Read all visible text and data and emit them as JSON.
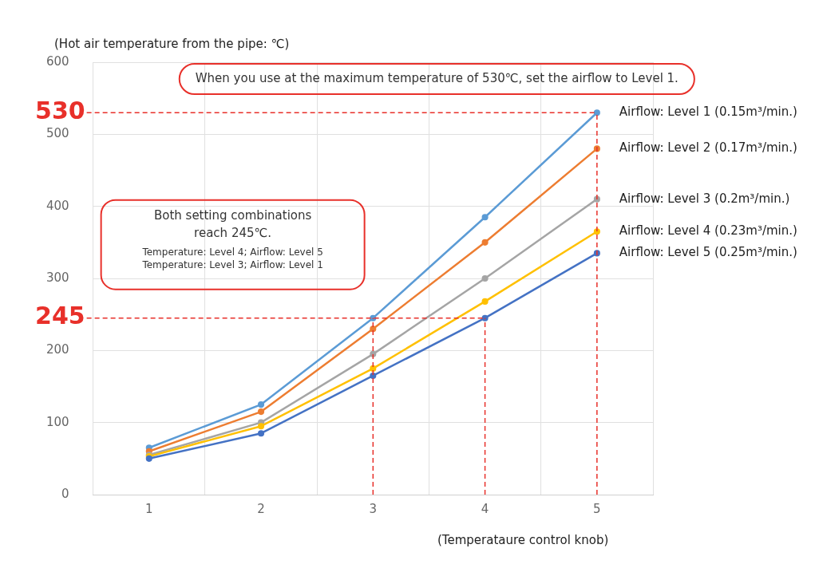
{
  "chart_data": {
    "type": "line",
    "ylabel": "(Hot air temperature from the pipe: ℃)",
    "xlabel": "(Temperataure control knob)",
    "categories": [
      "1",
      "2",
      "3",
      "4",
      "5"
    ],
    "series": [
      {
        "name": "Airflow: Level 1 (0.15m³/min.)",
        "color": "#5b9bd5",
        "values": [
          65,
          125,
          245,
          385,
          530
        ]
      },
      {
        "name": "Airflow: Level 2 (0.17m³/min.)",
        "color": "#ed7d31",
        "values": [
          60,
          115,
          230,
          350,
          480
        ]
      },
      {
        "name": "Airflow: Level 3 (0.2m³/min.)",
        "color": "#a5a5a5",
        "values": [
          55,
          100,
          195,
          300,
          410
        ]
      },
      {
        "name": "Airflow: Level 4 (0.23m³/min.)",
        "color": "#ffc000",
        "values": [
          53,
          95,
          175,
          268,
          365
        ]
      },
      {
        "name": "Airflow: Level 5 (0.25m³/min.)",
        "color": "#4472c4",
        "values": [
          50,
          85,
          165,
          245,
          335
        ]
      }
    ],
    "ylim": [
      0,
      600
    ],
    "yticks": [
      0,
      100,
      200,
      300,
      400,
      500,
      600
    ],
    "grid": true,
    "marker": "circle",
    "line_style": "solid",
    "ref_lines": [
      {
        "axis": "y",
        "value": 530,
        "label": "530",
        "color": "#e8302a",
        "line_style": "dashed"
      },
      {
        "axis": "y",
        "value": 245,
        "label": "245",
        "color": "#e8302a",
        "line_style": "dashed"
      },
      {
        "axis": "x",
        "value": "3",
        "color": "#e8302a",
        "line_style": "dashed"
      },
      {
        "axis": "x",
        "value": "4",
        "color": "#e8302a",
        "line_style": "dashed"
      },
      {
        "axis": "x",
        "value": "5",
        "color": "#e8302a",
        "line_style": "dashed"
      }
    ],
    "annotations": [
      "When you use at the maximum temperature of 530℃, set the airflow to Level 1.",
      "Both setting combinations reach 245℃.",
      "Temperature: Level 4; Airflow: Level 5",
      "Temperature: Level 3; Airflow: Level 1"
    ]
  }
}
